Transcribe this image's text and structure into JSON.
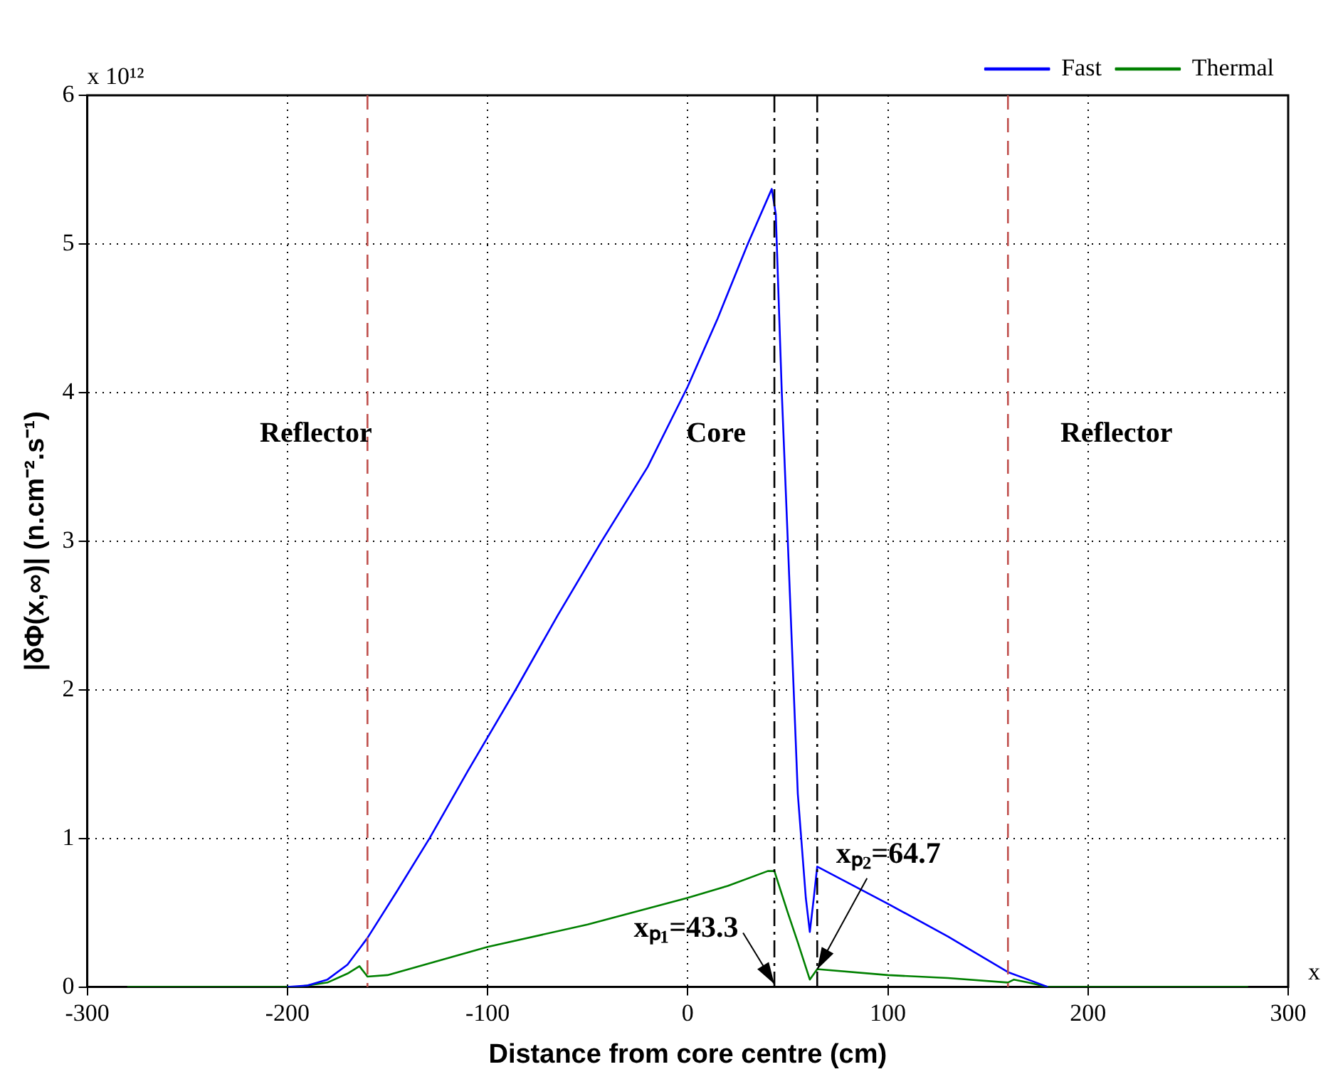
{
  "chart_data": {
    "type": "line",
    "xlabel": "Distance from core centre (cm)",
    "ylabel": "|δΦ(x,∞)| (n.cm⁻².s⁻¹)",
    "xlim": [
      -300,
      300
    ],
    "xticks": [
      -300,
      -200,
      -100,
      0,
      100,
      200,
      300
    ],
    "ylim": [
      0,
      6
    ],
    "yticks": [
      0,
      1,
      2,
      3,
      4,
      5,
      6
    ],
    "grid": true,
    "legend": "top right",
    "series": [
      {
        "name": "Fast",
        "color": "#0000ff",
        "x": [
          -200,
          -190,
          -180,
          -170,
          -160,
          -145,
          -129,
          -110,
          -86,
          -65,
          -43,
          -20,
          0,
          15,
          30,
          42,
          44,
          47,
          50,
          55,
          59,
          61,
          63,
          64.7,
          100,
          130,
          160,
          170,
          180
        ],
        "values": [
          0,
          0.01,
          0.05,
          0.15,
          0.33,
          0.65,
          1,
          1.45,
          2,
          2.5,
          3,
          3.5,
          4.04,
          4.5,
          5,
          5.37,
          5.2,
          4,
          3,
          1.3,
          0.6,
          0.37,
          0.6,
          0.81,
          0.56,
          0.34,
          0.1,
          0.05,
          0
        ]
      },
      {
        "name": "Thermal",
        "color": "#008000",
        "x": [
          -280,
          -195,
          -180,
          -170,
          -164,
          -160,
          -150,
          -100,
          -50,
          0,
          20,
          40,
          43.3,
          50,
          55,
          61,
          64.7,
          100,
          130,
          160,
          163,
          170,
          180,
          280
        ],
        "values": [
          0,
          0,
          0.03,
          0.09,
          0.14,
          0.07,
          0.08,
          0.27,
          0.42,
          0.6,
          0.68,
          0.78,
          0.78,
          0.5,
          0.3,
          0.05,
          0.12,
          0.08,
          0.06,
          0.03,
          0.05,
          0.03,
          0,
          0
        ]
      }
    ],
    "ref_lines": [
      {
        "axis": "x",
        "value": -160,
        "color": "#c0504d",
        "line_style": "dashed"
      },
      {
        "axis": "x",
        "value": 160,
        "color": "#c0504d",
        "line_style": "dashed"
      },
      {
        "axis": "x",
        "value": 43.3,
        "color": "#000000",
        "line_style": "dashdot"
      },
      {
        "axis": "x",
        "value": 64.7,
        "color": "#000000",
        "line_style": "dashdot"
      }
    ],
    "annotations": [
      "x 10¹²",
      "x",
      "Reflector",
      "Core",
      "Reflector",
      {
        "text": "xₚ₁=43.3",
        "x": 43.3,
        "y": 0
      },
      {
        "text": "xₚ₂=64.7",
        "x": 64.7,
        "y": 0.1
      }
    ]
  }
}
